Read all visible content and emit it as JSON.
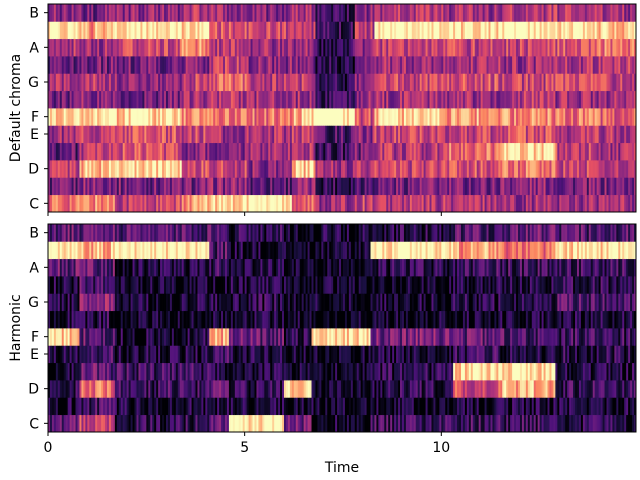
{
  "chart_data": [
    {
      "type": "heatmap",
      "title": "",
      "ylabel": "Default chroma",
      "xlabel": "",
      "xlim": [
        0,
        14.95
      ],
      "x_ticks": [
        0,
        5,
        10
      ],
      "x_tick_labels": [
        "",
        "",
        ""
      ],
      "y_pitch_classes": [
        "C",
        "C#",
        "D",
        "D#",
        "E",
        "F",
        "F#",
        "G",
        "G#",
        "A",
        "A#",
        "B"
      ],
      "y_tick_labels": [
        "C",
        "D",
        "E",
        "F",
        "G",
        "A",
        "B"
      ],
      "colormap": "magma",
      "value_range": [
        0,
        1
      ],
      "segments": [
        {
          "t": [
            0.0,
            0.8
          ],
          "values": [
            0.7,
            0.3,
            0.55,
            0.3,
            0.45,
            0.95,
            0.3,
            0.45,
            0.3,
            0.5,
            1.0,
            0.4
          ]
        },
        {
          "t": [
            0.8,
            1.7
          ],
          "values": [
            0.75,
            0.4,
            0.85,
            0.5,
            0.55,
            0.95,
            0.4,
            0.5,
            0.35,
            0.45,
            0.8,
            0.35
          ]
        },
        {
          "t": [
            1.7,
            3.4
          ],
          "values": [
            0.55,
            0.35,
            0.95,
            0.6,
            0.6,
            0.9,
            0.35,
            0.4,
            0.35,
            0.55,
            1.0,
            0.4
          ]
        },
        {
          "t": [
            3.4,
            4.1
          ],
          "values": [
            0.8,
            0.35,
            0.6,
            0.4,
            0.55,
            0.75,
            0.45,
            0.55,
            0.4,
            0.75,
            0.95,
            0.5
          ]
        },
        {
          "t": [
            4.1,
            5.1
          ],
          "values": [
            0.95,
            0.4,
            0.55,
            0.35,
            0.45,
            0.7,
            0.5,
            0.65,
            0.55,
            0.5,
            0.6,
            0.45
          ]
        },
        {
          "t": [
            5.1,
            6.2
          ],
          "values": [
            1.0,
            0.3,
            0.4,
            0.45,
            0.5,
            0.7,
            0.45,
            0.5,
            0.4,
            0.45,
            0.55,
            0.4
          ]
        },
        {
          "t": [
            6.2,
            6.8
          ],
          "values": [
            0.65,
            0.4,
            0.9,
            0.5,
            0.55,
            0.85,
            0.45,
            0.55,
            0.4,
            0.45,
            0.5,
            0.45
          ]
        },
        {
          "t": [
            6.8,
            7.8
          ],
          "values": [
            0.45,
            0.2,
            0.45,
            0.2,
            0.25,
            1.0,
            0.2,
            0.15,
            0.15,
            0.2,
            0.2,
            0.2
          ]
        },
        {
          "t": [
            7.8,
            8.3
          ],
          "values": [
            0.55,
            0.3,
            0.5,
            0.35,
            0.4,
            0.6,
            0.4,
            0.4,
            0.35,
            0.4,
            0.5,
            0.4
          ]
        },
        {
          "t": [
            8.3,
            10.1
          ],
          "values": [
            0.5,
            0.35,
            0.55,
            0.5,
            0.55,
            0.9,
            0.45,
            0.55,
            0.45,
            0.55,
            1.0,
            0.5
          ]
        },
        {
          "t": [
            10.1,
            11.5
          ],
          "values": [
            0.5,
            0.35,
            0.6,
            0.7,
            0.55,
            0.8,
            0.45,
            0.6,
            0.5,
            0.55,
            0.95,
            0.45
          ]
        },
        {
          "t": [
            11.5,
            12.9
          ],
          "values": [
            0.45,
            0.4,
            0.7,
            0.95,
            0.6,
            0.75,
            0.5,
            0.55,
            0.45,
            0.55,
            1.0,
            0.5
          ]
        },
        {
          "t": [
            12.9,
            14.0
          ],
          "values": [
            0.45,
            0.35,
            0.55,
            0.55,
            0.5,
            0.7,
            0.45,
            0.6,
            0.5,
            0.6,
            0.95,
            0.5
          ]
        },
        {
          "t": [
            14.0,
            14.95
          ],
          "values": [
            0.45,
            0.35,
            0.5,
            0.45,
            0.5,
            0.65,
            0.45,
            0.55,
            0.5,
            0.7,
            0.9,
            0.45
          ]
        }
      ]
    },
    {
      "type": "heatmap",
      "title": "",
      "ylabel": "Harmonic",
      "xlabel": "Time",
      "xlim": [
        0,
        14.95
      ],
      "x_ticks": [
        0,
        5,
        10
      ],
      "x_tick_labels": [
        "0",
        "5",
        "10"
      ],
      "y_pitch_classes": [
        "C",
        "C#",
        "D",
        "D#",
        "E",
        "F",
        "F#",
        "G",
        "G#",
        "A",
        "A#",
        "B"
      ],
      "y_tick_labels": [
        "C",
        "D",
        "E",
        "F",
        "G",
        "A",
        "B"
      ],
      "colormap": "magma",
      "value_range": [
        0,
        1
      ],
      "segments": [
        {
          "t": [
            0.0,
            0.8
          ],
          "values": [
            0.3,
            0.1,
            0.2,
            0.1,
            0.15,
            0.9,
            0.1,
            0.1,
            0.1,
            0.3,
            1.0,
            0.3
          ]
        },
        {
          "t": [
            0.8,
            1.7
          ],
          "values": [
            0.55,
            0.2,
            0.7,
            0.3,
            0.25,
            0.3,
            0.15,
            0.4,
            0.25,
            0.3,
            0.85,
            0.3
          ]
        },
        {
          "t": [
            1.7,
            4.1
          ],
          "values": [
            0.15,
            0.1,
            0.2,
            0.2,
            0.1,
            0.1,
            0.05,
            0.1,
            0.05,
            0.1,
            1.0,
            0.25
          ]
        },
        {
          "t": [
            4.1,
            4.6
          ],
          "values": [
            0.3,
            0.1,
            0.3,
            0.1,
            0.2,
            0.8,
            0.1,
            0.1,
            0.05,
            0.2,
            0.25,
            0.3
          ]
        },
        {
          "t": [
            4.6,
            6.0
          ],
          "values": [
            1.0,
            0.1,
            0.15,
            0.1,
            0.1,
            0.3,
            0.1,
            0.15,
            0.1,
            0.1,
            0.1,
            0.15
          ]
        },
        {
          "t": [
            6.0,
            6.7
          ],
          "values": [
            0.35,
            0.05,
            0.95,
            0.1,
            0.05,
            0.15,
            0.05,
            0.05,
            0.05,
            0.05,
            0.05,
            0.1
          ]
        },
        {
          "t": [
            6.7,
            8.2
          ],
          "values": [
            0.1,
            0.05,
            0.05,
            0.05,
            0.05,
            0.95,
            0.05,
            0.05,
            0.05,
            0.05,
            0.05,
            0.1
          ]
        },
        {
          "t": [
            8.2,
            10.3
          ],
          "values": [
            0.2,
            0.05,
            0.15,
            0.15,
            0.1,
            0.35,
            0.05,
            0.1,
            0.05,
            0.15,
            1.0,
            0.15
          ]
        },
        {
          "t": [
            10.3,
            11.5
          ],
          "values": [
            0.2,
            0.1,
            0.6,
            0.95,
            0.2,
            0.3,
            0.1,
            0.15,
            0.1,
            0.2,
            0.8,
            0.25
          ]
        },
        {
          "t": [
            11.5,
            12.9
          ],
          "values": [
            0.2,
            0.1,
            0.85,
            0.95,
            0.15,
            0.25,
            0.1,
            0.15,
            0.1,
            0.2,
            0.7,
            0.3
          ]
        },
        {
          "t": [
            12.9,
            14.95
          ],
          "values": [
            0.15,
            0.1,
            0.2,
            0.15,
            0.15,
            0.2,
            0.1,
            0.25,
            0.15,
            0.2,
            0.95,
            0.25
          ]
        }
      ]
    }
  ]
}
